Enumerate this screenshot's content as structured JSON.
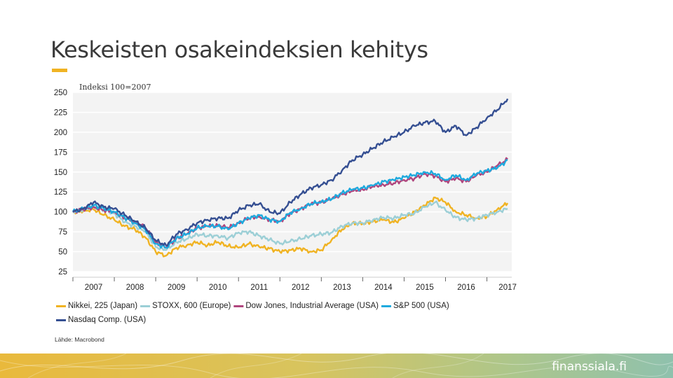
{
  "slide": {
    "title": "Keskeisten osakeindeksien kehitys",
    "accent_color": "#f0b323",
    "footer_text": "finanssiala.fi"
  },
  "chart_data": {
    "type": "line",
    "note": "Indeksi 100=2007",
    "source": "Lähde: Macrobond",
    "ylim": [
      25,
      250
    ],
    "yticks": [
      250,
      225,
      200,
      175,
      150,
      125,
      100,
      75,
      50,
      25
    ],
    "xlim": [
      2006.5,
      2017.1
    ],
    "xtick_labels": [
      "2007",
      "2008",
      "2009",
      "2010",
      "2011",
      "2012",
      "2013",
      "2014",
      "2015",
      "2016",
      "2017"
    ],
    "grid": true,
    "legend_position": "bottom",
    "x": [
      2006.5,
      2006.75,
      2007.0,
      2007.25,
      2007.5,
      2007.75,
      2008.0,
      2008.25,
      2008.5,
      2008.75,
      2009.0,
      2009.25,
      2009.5,
      2009.75,
      2010.0,
      2010.25,
      2010.5,
      2010.75,
      2011.0,
      2011.25,
      2011.5,
      2011.75,
      2012.0,
      2012.25,
      2012.5,
      2012.75,
      2013.0,
      2013.25,
      2013.5,
      2013.75,
      2014.0,
      2014.25,
      2014.5,
      2014.75,
      2015.0,
      2015.25,
      2015.5,
      2015.75,
      2016.0,
      2016.25,
      2016.5,
      2016.75,
      2017.0
    ],
    "series": [
      {
        "name": "Nikkei, 225 (Japan)",
        "color": "#f0b323",
        "values": [
          100,
          101,
          103,
          96,
          90,
          82,
          78,
          68,
          50,
          45,
          55,
          58,
          62,
          58,
          62,
          57,
          55,
          60,
          56,
          54,
          50,
          52,
          54,
          50,
          52,
          65,
          78,
          86,
          85,
          88,
          90,
          87,
          92,
          100,
          108,
          118,
          112,
          100,
          96,
          92,
          94,
          103,
          111
        ]
      },
      {
        "name": "STOXX, 600 (Europe)",
        "color": "#9ccfd6",
        "values": [
          100,
          103,
          107,
          103,
          98,
          87,
          82,
          75,
          56,
          52,
          62,
          66,
          72,
          70,
          70,
          67,
          74,
          75,
          70,
          65,
          60,
          63,
          66,
          70,
          72,
          74,
          82,
          86,
          86,
          90,
          93,
          92,
          96,
          98,
          106,
          112,
          102,
          93,
          90,
          92,
          96,
          100,
          104
        ]
      },
      {
        "name": "Dow Jones, Industrial Average (USA)",
        "color": "#b0467e",
        "values": [
          100,
          103,
          106,
          102,
          100,
          92,
          88,
          80,
          62,
          55,
          67,
          72,
          80,
          82,
          83,
          80,
          86,
          92,
          94,
          90,
          88,
          98,
          104,
          110,
          112,
          116,
          122,
          126,
          128,
          132,
          134,
          136,
          140,
          142,
          148,
          145,
          138,
          142,
          138,
          146,
          150,
          158,
          166
        ]
      },
      {
        "name": "S&P 500 (USA)",
        "color": "#1eaade",
        "values": [
          100,
          104,
          108,
          104,
          100,
          93,
          86,
          78,
          60,
          55,
          67,
          72,
          80,
          82,
          82,
          78,
          86,
          92,
          96,
          90,
          88,
          99,
          104,
          110,
          113,
          116,
          124,
          128,
          130,
          133,
          138,
          140,
          144,
          146,
          150,
          148,
          140,
          146,
          140,
          148,
          152,
          155,
          165
        ]
      },
      {
        "name": "Nasdaq Comp. (USA)",
        "color": "#354f92",
        "values": [
          100,
          104,
          112,
          106,
          104,
          96,
          88,
          80,
          64,
          58,
          72,
          78,
          86,
          90,
          92,
          92,
          102,
          108,
          110,
          100,
          98,
          112,
          122,
          130,
          134,
          140,
          152,
          165,
          172,
          180,
          188,
          194,
          200,
          208,
          212,
          214,
          200,
          208,
          196,
          206,
          218,
          228,
          242
        ]
      }
    ],
    "legend_rows": [
      [
        0,
        1,
        2,
        3
      ],
      [
        4
      ]
    ]
  }
}
